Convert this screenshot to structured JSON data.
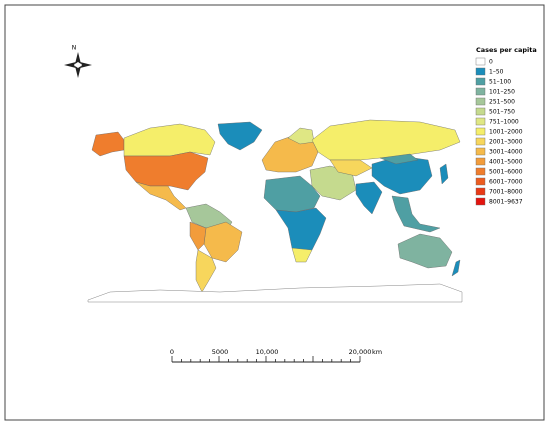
{
  "legend": {
    "title": "Cases per capita",
    "items": [
      {
        "label": "0",
        "color": "#ffffff"
      },
      {
        "label": "1–50",
        "color": "#1b8dba"
      },
      {
        "label": "51–100",
        "color": "#4f9fa3"
      },
      {
        "label": "101–250",
        "color": "#7fb3a0"
      },
      {
        "label": "251–500",
        "color": "#a6c79a"
      },
      {
        "label": "501–750",
        "color": "#c5da8e"
      },
      {
        "label": "751–1000",
        "color": "#dfe784"
      },
      {
        "label": "1001–2000",
        "color": "#f5ee6a"
      },
      {
        "label": "2001–3000",
        "color": "#f7d65c"
      },
      {
        "label": "3001–4000",
        "color": "#f5ba4b"
      },
      {
        "label": "4001–5000",
        "color": "#f29c3b"
      },
      {
        "label": "5001–6000",
        "color": "#ef7d2d"
      },
      {
        "label": "6001–7000",
        "color": "#ec5c20"
      },
      {
        "label": "7001–8000",
        "color": "#e83a16"
      },
      {
        "label": "8001–9637",
        "color": "#e3140e"
      }
    ]
  },
  "compass": {
    "label": "N"
  },
  "scale_bar": {
    "labels": [
      "0",
      "5000",
      "10,000",
      "20,000"
    ],
    "unit": "km"
  }
}
